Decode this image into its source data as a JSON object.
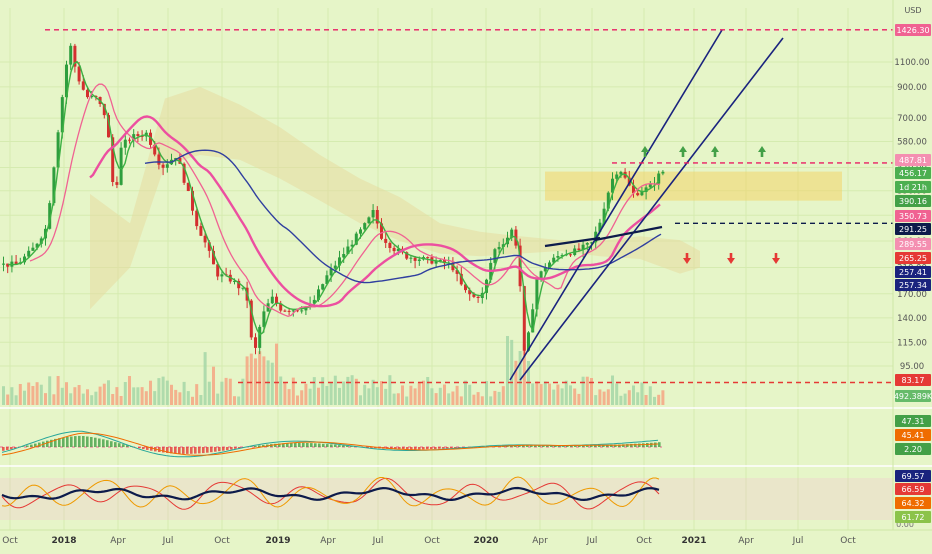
{
  "chart_data": [
    {
      "type": "candlestick",
      "currency": "USD",
      "scale": "log",
      "y_ticks": [
        95,
        115,
        140,
        170,
        210,
        260,
        320,
        390,
        470,
        580,
        700,
        900,
        1100
      ],
      "y_tick_labels": [
        "95.00",
        "115.00",
        "140.00",
        "170.00",
        "210.00",
        "260.00",
        "320.00",
        "390.00",
        "470.00",
        "580.00",
        "700.00",
        "900.00",
        "1100.00"
      ],
      "x_labels": [
        "Oct",
        "2018",
        "Apr",
        "Jul",
        "Oct",
        "2019",
        "Apr",
        "Jul",
        "Oct",
        "2020",
        "Apr",
        "Jul",
        "Oct",
        "2021",
        "Apr",
        "Jul",
        "Oct"
      ],
      "price_tags": [
        {
          "label": "1426.30",
          "value": 1426.3,
          "color": "#f06292"
        },
        {
          "label": "487.81",
          "value": 487.81,
          "color": "#f48fb1"
        },
        {
          "label": "456.17",
          "value": 456.17,
          "color": "#4caf50"
        },
        {
          "label": "1d 21h",
          "value": 432,
          "color": "#4caf50"
        },
        {
          "label": "390.16",
          "value": 390.16,
          "color": "#43a047"
        },
        {
          "label": "350.73",
          "value": 350.73,
          "color": "#f06292"
        },
        {
          "label": "291.25",
          "value": 291.25,
          "color": "#0d1b4b"
        },
        {
          "label": "289.55",
          "value": 289.55,
          "color": "#f48fb1"
        },
        {
          "label": "265.25",
          "value": 265.25,
          "color": "#e53935"
        },
        {
          "label": "257.41",
          "value": 257.41,
          "color": "#1a237e"
        },
        {
          "label": "257.34",
          "value": 257.34,
          "color": "#1a237e"
        },
        {
          "label": "83.17",
          "value": 83.17,
          "color": "#e53935"
        },
        {
          "label": "492.389K",
          "value": 492389,
          "color": "#66bb6a"
        }
      ],
      "horizontal_levels": [
        {
          "value": 1426.3,
          "style": "dashed",
          "color": "#e91e63"
        },
        {
          "value": 487.81,
          "style": "dashed",
          "color": "#e91e63"
        },
        {
          "value": 300,
          "style": "dashed",
          "color": "#0d1b4b"
        },
        {
          "value": 83.17,
          "style": "dashed",
          "color": "#e53935"
        }
      ],
      "resistance_zone": [
        360,
        455
      ],
      "signals": {
        "up_arrows": 4,
        "down_arrows": 3
      }
    },
    {
      "type": "line",
      "indicator": "MACD",
      "tags": [
        {
          "label": "47.31",
          "value": 47.31,
          "color": "#43a047"
        },
        {
          "label": "45.41",
          "value": 45.41,
          "color": "#ef6c00"
        },
        {
          "label": "2.20",
          "value": 2.2,
          "color": "#43a047"
        }
      ]
    },
    {
      "type": "line",
      "indicator": "Stochastic RSI",
      "tags": [
        {
          "label": "69.57",
          "value": 69.57,
          "color": "#1a237e"
        },
        {
          "label": "66.59",
          "value": 66.59,
          "color": "#e53935"
        },
        {
          "label": "64.32",
          "value": 64.32,
          "color": "#ef6c00"
        },
        {
          "label": "61.72",
          "value": 61.72,
          "color": "#8bc34a"
        }
      ],
      "axis_labels": [
        "0.00"
      ]
    }
  ]
}
